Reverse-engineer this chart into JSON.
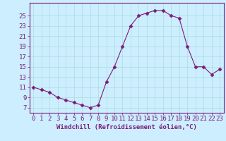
{
  "x": [
    0,
    1,
    2,
    3,
    4,
    5,
    6,
    7,
    8,
    9,
    10,
    11,
    12,
    13,
    14,
    15,
    16,
    17,
    18,
    19,
    20,
    21,
    22,
    23
  ],
  "y": [
    11,
    10.5,
    10,
    9,
    8.5,
    8,
    7.5,
    7,
    7.5,
    12,
    15,
    19,
    23,
    25,
    25.5,
    26,
    26,
    25,
    24.5,
    19,
    15,
    15,
    13.5,
    14.5
  ],
  "line_color": "#7B1B7B",
  "marker": "D",
  "marker_size": 2.5,
  "bg_color": "#cceeff",
  "grid_color": "#aadddd",
  "xlabel": "Windchill (Refroidissement éolien,°C)",
  "xlabel_fontsize": 6.5,
  "yticks": [
    7,
    9,
    11,
    13,
    15,
    17,
    19,
    21,
    23,
    25
  ],
  "xticks": [
    0,
    1,
    2,
    3,
    4,
    5,
    6,
    7,
    8,
    9,
    10,
    11,
    12,
    13,
    14,
    15,
    16,
    17,
    18,
    19,
    20,
    21,
    22,
    23
  ],
  "ylim": [
    6.0,
    27.5
  ],
  "xlim": [
    -0.5,
    23.5
  ],
  "tick_color": "#7B1B7B",
  "tick_fontsize": 6.5,
  "label_color": "#7B1B7B",
  "spine_color": "#7B1B7B"
}
